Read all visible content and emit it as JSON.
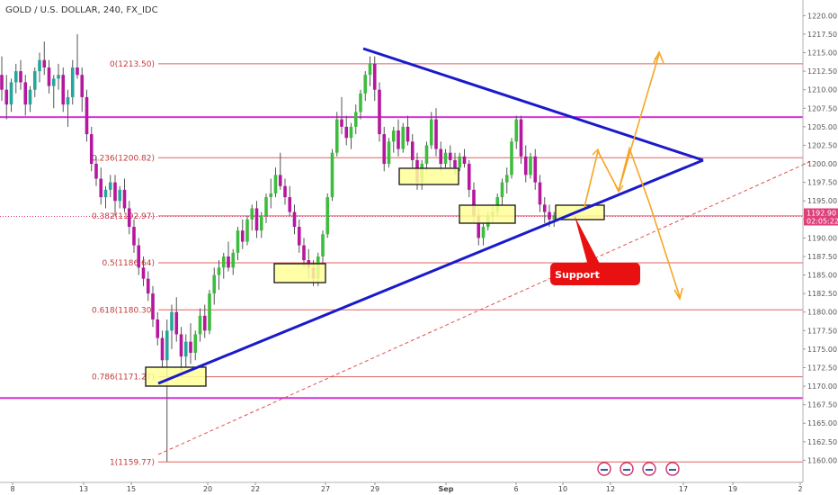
{
  "header": {
    "title": "GOLD / U.S. DOLLAR, 240, FX_IDC"
  },
  "colors": {
    "bull": "#26a69a",
    "bull_bright": "#3dbd3d",
    "bear": "#b5179e",
    "fib_line": "#e06060",
    "magenta_line": "#d633d6",
    "triangle": "#1a1acc",
    "projection": "#f5a623",
    "box_fill": "#ffff99",
    "box_border": "#222222",
    "callout": "#e81010",
    "price_tag": "#e0407a"
  },
  "price_tag": {
    "price": "1192.90",
    "countdown": "02:05:22"
  },
  "callout": {
    "label": "Support"
  },
  "chart_data": {
    "type": "candlestick",
    "title": "GOLD / U.S. DOLLAR, 240, FX_IDC",
    "xlabel": "",
    "ylabel": "",
    "ylim": [
      1157.5,
      1221.5
    ],
    "y_ticks": [
      1160,
      1162.5,
      1165,
      1167.5,
      1170,
      1172.5,
      1175,
      1177.5,
      1180,
      1182.5,
      1185,
      1187.5,
      1190,
      1192.5,
      1195,
      1197.5,
      1200,
      1202.5,
      1205,
      1207.5,
      1210,
      1212.5,
      1215,
      1217.5,
      1220
    ],
    "y_tick_labels": [
      "1160.00",
      "1162.50",
      "1165.00",
      "1167.50",
      "1170.00",
      "1172.50",
      "1175.00",
      "1177.50",
      "1180.00",
      "1182.50",
      "1185.00",
      "1187.50",
      "1190.00",
      "1192.50",
      "1195.00",
      "1197.50",
      "1200.00",
      "1202.50",
      "1205.00",
      "1207.50",
      "1210.00",
      "1212.50",
      "1215.00",
      "1217.50",
      "1220.00"
    ],
    "x_ticks": [
      "8",
      "13",
      "15",
      "20",
      "22",
      "27",
      "29",
      "Sep",
      "6",
      "10",
      "12",
      "17",
      "19",
      "2"
    ],
    "fib_levels": [
      {
        "label": "0(1213.50)",
        "price": 1213.5
      },
      {
        "label": "0.236(1200.82)",
        "price": 1200.82
      },
      {
        "label": "0.382(1192.97)",
        "price": 1192.97
      },
      {
        "label": "0.5(1186.64)",
        "price": 1186.64
      },
      {
        "label": "0.618(1180.30)",
        "price": 1180.3
      },
      {
        "label": "0.786(1171.27)",
        "price": 1171.27
      },
      {
        "label": "1(1159.77)",
        "price": 1159.77
      }
    ],
    "horizontal_levels": [
      1206.3,
      1168.4
    ],
    "last_price": 1192.9,
    "series": [
      {
        "ohlc": [
          [
            1212.0,
            1214.5,
            1208.5,
            1210.0
          ],
          [
            1210.0,
            1212.0,
            1206.0,
            1208.0
          ],
          [
            1208.0,
            1211.5,
            1207.0,
            1211.0
          ],
          [
            1211.0,
            1213.5,
            1209.5,
            1212.5
          ],
          [
            1212.5,
            1214.0,
            1210.0,
            1211.0
          ],
          [
            1211.0,
            1212.0,
            1206.5,
            1208.0
          ],
          [
            1208.0,
            1210.5,
            1207.0,
            1210.0
          ],
          [
            1210.0,
            1213.0,
            1209.0,
            1212.5
          ],
          [
            1212.5,
            1215.0,
            1211.0,
            1214.0
          ],
          [
            1214.0,
            1216.5,
            1212.0,
            1213.0
          ],
          [
            1213.0,
            1214.0,
            1209.5,
            1210.5
          ],
          [
            1210.5,
            1212.0,
            1207.5,
            1211.5
          ],
          [
            1211.5,
            1213.5,
            1210.0,
            1212.0
          ],
          [
            1212.0,
            1213.0,
            1207.0,
            1208.0
          ],
          [
            1208.0,
            1210.0,
            1205.0,
            1209.0
          ],
          [
            1209.0,
            1214.0,
            1208.0,
            1213.0
          ],
          [
            1213.0,
            1217.5,
            1211.5,
            1212.0
          ],
          [
            1212.0,
            1213.0,
            1207.0,
            1209.0
          ],
          [
            1209.0,
            1210.0,
            1203.0,
            1204.0
          ],
          [
            1204.0,
            1205.0,
            1199.0,
            1200.0
          ],
          [
            1200.0,
            1201.0,
            1197.0,
            1198.0
          ],
          [
            1198.0,
            1199.5,
            1194.5,
            1195.5
          ],
          [
            1195.5,
            1197.0,
            1194.0,
            1196.5
          ],
          [
            1196.5,
            1198.5,
            1195.5,
            1197.5
          ],
          [
            1197.5,
            1198.5,
            1193.0,
            1195.0
          ],
          [
            1195.0,
            1197.0,
            1194.0,
            1196.5
          ],
          [
            1196.5,
            1198.0,
            1193.5,
            1194.0
          ],
          [
            1194.0,
            1195.0,
            1190.5,
            1191.5
          ],
          [
            1191.5,
            1192.5,
            1188.0,
            1189.0
          ],
          [
            1189.0,
            1190.0,
            1185.0,
            1186.0
          ],
          [
            1186.0,
            1187.5,
            1183.5,
            1184.5
          ],
          [
            1184.5,
            1185.5,
            1181.5,
            1182.5
          ],
          [
            1182.5,
            1183.5,
            1178.0,
            1179.0
          ],
          [
            1179.0,
            1180.0,
            1175.5,
            1176.5
          ],
          [
            1176.5,
            1177.5,
            1172.5,
            1173.5
          ],
          [
            1173.5,
            1179.0,
            1159.8,
            1177.5
          ],
          [
            1177.5,
            1181.0,
            1175.0,
            1180.0
          ],
          [
            1180.0,
            1182.0,
            1176.0,
            1177.0
          ],
          [
            1177.0,
            1178.0,
            1172.0,
            1174.0
          ],
          [
            1174.0,
            1177.0,
            1172.5,
            1176.0
          ],
          [
            1176.0,
            1178.5,
            1173.0,
            1174.5
          ],
          [
            1174.5,
            1177.5,
            1173.5,
            1177.0
          ],
          [
            1177.0,
            1180.5,
            1176.0,
            1179.5
          ],
          [
            1179.5,
            1181.0,
            1176.5,
            1177.5
          ],
          [
            1177.5,
            1183.0,
            1177.0,
            1182.5
          ],
          [
            1182.5,
            1186.0,
            1181.0,
            1185.0
          ],
          [
            1185.0,
            1187.0,
            1183.0,
            1186.0
          ],
          [
            1186.0,
            1188.0,
            1184.5,
            1187.5
          ],
          [
            1187.5,
            1189.5,
            1185.5,
            1186.0
          ],
          [
            1186.0,
            1188.5,
            1185.0,
            1188.0
          ],
          [
            1188.0,
            1191.5,
            1187.0,
            1191.0
          ],
          [
            1191.0,
            1192.5,
            1188.5,
            1189.5
          ],
          [
            1189.5,
            1193.0,
            1189.0,
            1192.5
          ],
          [
            1192.5,
            1194.5,
            1191.0,
            1194.0
          ],
          [
            1194.0,
            1195.0,
            1190.0,
            1191.0
          ],
          [
            1191.0,
            1193.5,
            1190.0,
            1193.0
          ],
          [
            1193.0,
            1196.0,
            1192.0,
            1195.5
          ],
          [
            1195.5,
            1198.0,
            1194.0,
            1196.0
          ],
          [
            1196.0,
            1199.5,
            1195.5,
            1198.5
          ],
          [
            1198.5,
            1201.5,
            1196.5,
            1197.0
          ],
          [
            1197.0,
            1198.0,
            1194.5,
            1195.5
          ],
          [
            1195.5,
            1197.0,
            1193.0,
            1193.5
          ],
          [
            1193.5,
            1194.5,
            1190.5,
            1191.5
          ],
          [
            1191.5,
            1192.5,
            1188.0,
            1189.0
          ],
          [
            1189.0,
            1190.0,
            1186.0,
            1187.0
          ],
          [
            1187.0,
            1188.5,
            1184.5,
            1186.0
          ],
          [
            1186.0,
            1187.0,
            1183.5,
            1184.5
          ],
          [
            1184.5,
            1188.0,
            1183.5,
            1187.5
          ],
          [
            1187.5,
            1191.0,
            1186.5,
            1190.5
          ],
          [
            1190.5,
            1196.0,
            1190.0,
            1195.5
          ],
          [
            1195.5,
            1202.0,
            1195.0,
            1201.5
          ],
          [
            1201.5,
            1207.0,
            1201.0,
            1206.0
          ],
          [
            1206.0,
            1209.0,
            1204.0,
            1205.0
          ],
          [
            1205.0,
            1206.5,
            1202.5,
            1203.5
          ],
          [
            1203.5,
            1205.5,
            1202.0,
            1205.0
          ],
          [
            1205.0,
            1208.0,
            1204.0,
            1207.0
          ],
          [
            1207.0,
            1210.0,
            1206.0,
            1209.5
          ],
          [
            1209.5,
            1212.5,
            1208.5,
            1212.0
          ],
          [
            1212.0,
            1214.5,
            1210.5,
            1213.5
          ],
          [
            1213.5,
            1214.5,
            1208.5,
            1210.0
          ],
          [
            1210.0,
            1211.0,
            1203.0,
            1204.0
          ],
          [
            1204.0,
            1205.0,
            1199.0,
            1200.0
          ],
          [
            1200.0,
            1203.5,
            1199.5,
            1203.0
          ],
          [
            1203.0,
            1205.0,
            1201.5,
            1204.5
          ],
          [
            1204.5,
            1206.0,
            1201.0,
            1202.0
          ],
          [
            1202.0,
            1205.5,
            1201.5,
            1205.0
          ],
          [
            1205.0,
            1206.5,
            1202.5,
            1203.0
          ],
          [
            1203.0,
            1204.0,
            1199.5,
            1200.5
          ],
          [
            1200.5,
            1201.5,
            1196.5,
            1197.5
          ],
          [
            1197.5,
            1200.5,
            1196.5,
            1200.0
          ],
          [
            1200.0,
            1203.0,
            1199.0,
            1202.5
          ],
          [
            1202.5,
            1207.0,
            1202.0,
            1206.0
          ],
          [
            1206.0,
            1207.5,
            1201.0,
            1202.0
          ],
          [
            1202.0,
            1203.0,
            1199.0,
            1200.0
          ],
          [
            1200.0,
            1202.0,
            1199.5,
            1201.5
          ],
          [
            1201.5,
            1202.5,
            1199.5,
            1200.5
          ],
          [
            1200.5,
            1201.5,
            1198.5,
            1199.5
          ],
          [
            1199.5,
            1201.5,
            1199.0,
            1201.0
          ],
          [
            1201.0,
            1202.0,
            1199.5,
            1200.0
          ],
          [
            1200.0,
            1200.5,
            1195.5,
            1196.5
          ],
          [
            1196.5,
            1197.5,
            1192.0,
            1193.0
          ],
          [
            1193.0,
            1194.0,
            1189.0,
            1190.0
          ],
          [
            1190.0,
            1192.0,
            1189.0,
            1191.5
          ],
          [
            1191.5,
            1193.5,
            1191.0,
            1193.0
          ],
          [
            1193.0,
            1194.5,
            1192.0,
            1193.5
          ],
          [
            1193.5,
            1196.0,
            1193.0,
            1195.5
          ],
          [
            1195.5,
            1198.0,
            1194.5,
            1197.5
          ],
          [
            1197.5,
            1199.5,
            1196.0,
            1198.5
          ],
          [
            1198.5,
            1203.5,
            1198.0,
            1203.0
          ],
          [
            1203.0,
            1206.5,
            1202.0,
            1206.0
          ],
          [
            1206.0,
            1206.5,
            1200.0,
            1201.0
          ],
          [
            1201.0,
            1202.5,
            1197.5,
            1198.5
          ],
          [
            1198.5,
            1201.5,
            1198.0,
            1201.0
          ],
          [
            1201.0,
            1202.0,
            1196.5,
            1197.5
          ],
          [
            1197.5,
            1198.5,
            1193.5,
            1194.5
          ],
          [
            1194.5,
            1195.5,
            1192.0,
            1193.5
          ],
          [
            1193.5,
            1194.5,
            1191.5,
            1192.5
          ],
          [
            1192.5,
            1193.5,
            1191.5,
            1192.9
          ]
        ]
      }
    ],
    "annotations": [
      {
        "type": "text",
        "text": "Support"
      }
    ]
  }
}
